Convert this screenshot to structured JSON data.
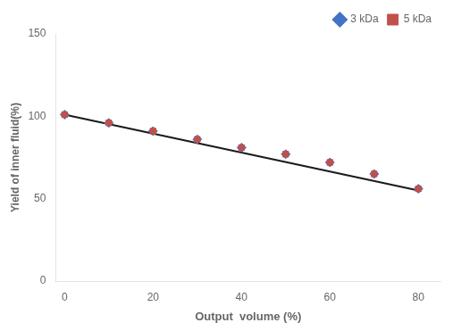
{
  "chart_data": {
    "type": "scatter",
    "x": [
      0,
      10,
      20,
      30,
      40,
      50,
      60,
      70,
      80
    ],
    "series": [
      {
        "type": "line",
        "color": "#1a1a1a",
        "line_style": "solid",
        "x": [
          0,
          80
        ],
        "values": [
          101,
          55
        ]
      },
      {
        "name": "3 kDa",
        "color": "#4472C4",
        "marker": "diamond",
        "values": [
          101,
          96,
          91,
          86,
          81,
          77,
          72,
          65,
          56
        ]
      },
      {
        "name": "5 kDa",
        "color": "#C0504D",
        "marker": "square",
        "values": [
          101,
          96,
          91,
          86,
          81,
          77,
          72,
          65,
          56
        ]
      }
    ],
    "xlabel": "Output  volume (%)",
    "ylabel": "Yield of inner fluid(%)",
    "xlim": [
      -2,
      85
    ],
    "xticks": [
      0,
      20,
      40,
      60,
      80
    ],
    "ylim": [
      0,
      150
    ],
    "yticks": [
      0,
      50,
      100,
      150
    ],
    "grid": false,
    "legend": "upper right"
  }
}
